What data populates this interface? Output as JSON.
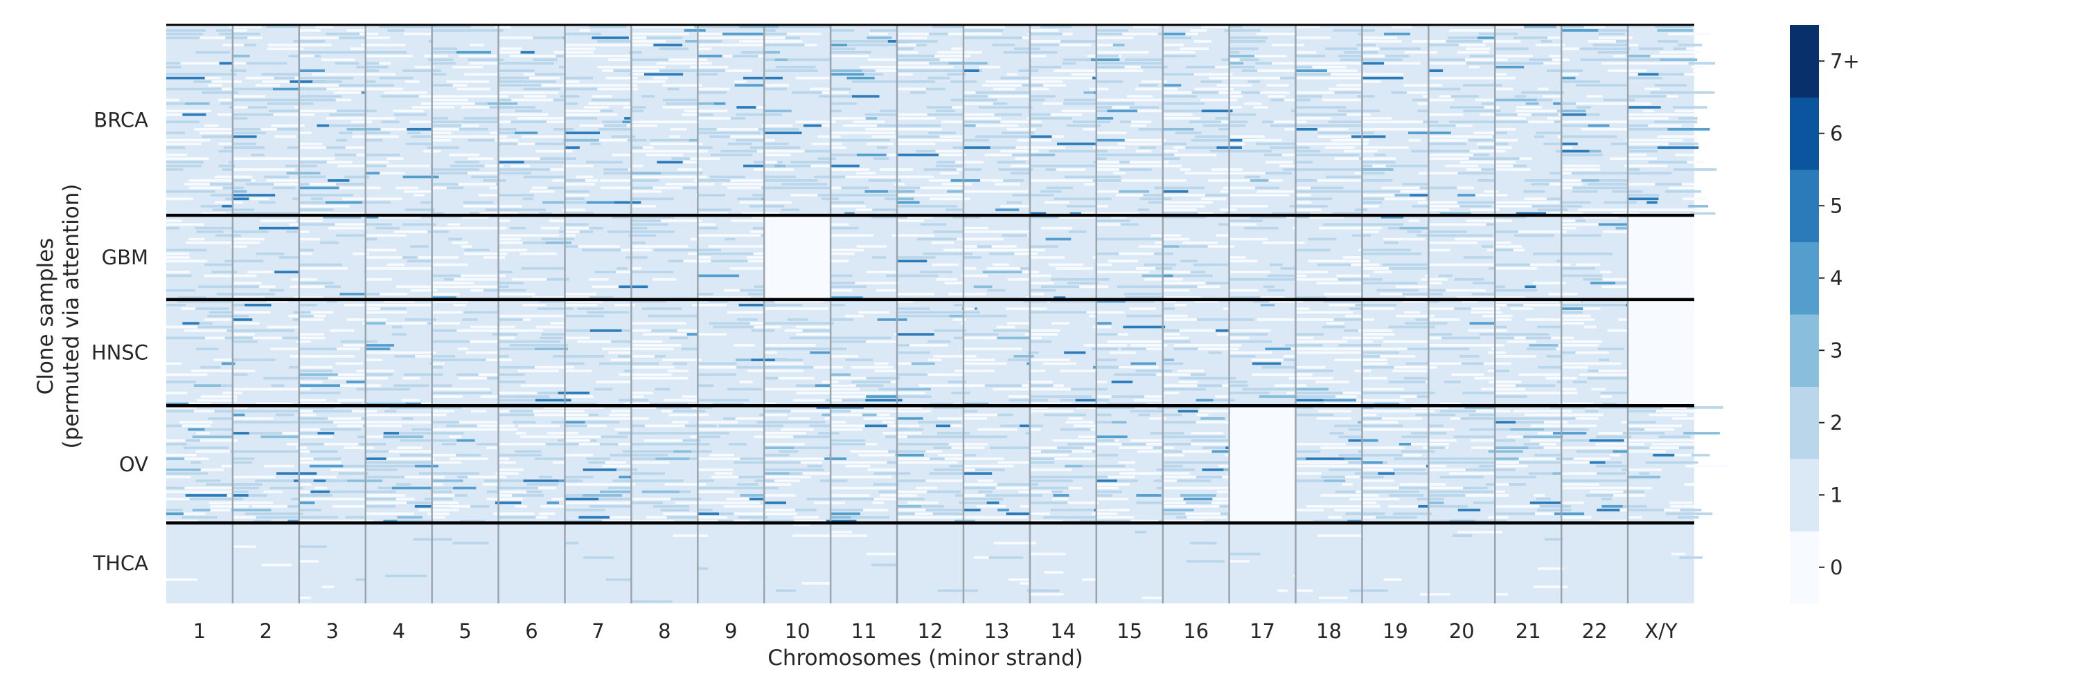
{
  "chart_data": {
    "type": "heatmap",
    "title": "",
    "xlabel": "Chromosomes (minor strand)",
    "ylabel": [
      "Clone samples",
      "(permuted via attention)"
    ],
    "x_categories": [
      "1",
      "2",
      "3",
      "4",
      "5",
      "6",
      "7",
      "8",
      "9",
      "10",
      "11",
      "12",
      "13",
      "14",
      "15",
      "16",
      "17",
      "18",
      "19",
      "20",
      "21",
      "22",
      "X/Y"
    ],
    "y_groups": [
      {
        "label": "BRCA",
        "rows": 52
      },
      {
        "label": "GBM",
        "rows": 23
      },
      {
        "label": "HNSC",
        "rows": 29
      },
      {
        "label": "OV",
        "rows": 32
      },
      {
        "label": "THCA",
        "rows": 22
      }
    ],
    "values_description": "per-sample minor-strand copy number; predominantly 1, with scattered 0 and 2, rare 3-7+",
    "dominant_value": 1,
    "colorbar": {
      "ticks": [
        "0",
        "1",
        "2",
        "3",
        "4",
        "5",
        "6",
        "7+"
      ],
      "values": [
        0,
        1,
        2,
        3,
        4,
        5,
        6,
        7
      ],
      "colors": [
        "#f7fbff",
        "#dbe9f6",
        "#bad6eb",
        "#89bedc",
        "#539ecd",
        "#2b7bba",
        "#0b559f",
        "#08306b"
      ]
    }
  }
}
